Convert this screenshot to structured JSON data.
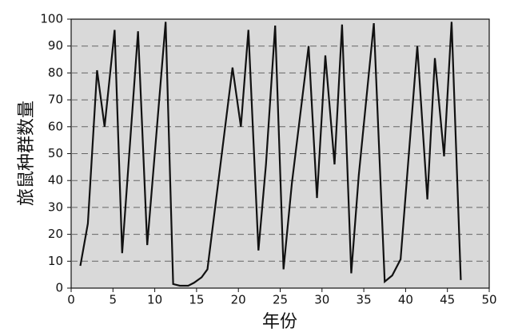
{
  "chart_data": {
    "type": "line",
    "x_label": "年份",
    "y_label": "旅鼠种群数量",
    "x": [
      1.1,
      2,
      3.1,
      4,
      5.2,
      6.1,
      8,
      9.1,
      11.3,
      12.2,
      13,
      14,
      14.7,
      15.6,
      16.3,
      19.3,
      20.3,
      21.2,
      22.4,
      23.3,
      24.4,
      25.4,
      26.4,
      28.4,
      29.4,
      30.4,
      31.5,
      32.4,
      33.5,
      34.4,
      36.2,
      37.5,
      38.4,
      39.4,
      41.4,
      42.6,
      43.5,
      44.6,
      45.5,
      46.6
    ],
    "values": [
      8.3,
      24,
      81,
      60,
      96,
      13,
      95.5,
      16,
      99,
      1.5,
      0.9,
      0.9,
      2,
      4,
      7,
      82,
      60,
      96,
      14,
      46,
      97.6,
      7,
      39,
      90,
      33.5,
      86.5,
      46,
      98,
      5.5,
      42,
      98.5,
      2.4,
      4.7,
      10.7,
      90,
      33,
      85.5,
      49,
      99,
      3
    ],
    "color": "#111111",
    "background": "#d9d9d9",
    "xlim": [
      0,
      50
    ],
    "xticks": [
      0,
      5,
      10,
      15,
      20,
      25,
      30,
      35,
      40,
      45,
      50
    ],
    "ylim": [
      0,
      100
    ],
    "yticks": [
      0,
      10,
      20,
      30,
      40,
      50,
      60,
      70,
      80,
      90,
      100
    ],
    "grid": true
  }
}
